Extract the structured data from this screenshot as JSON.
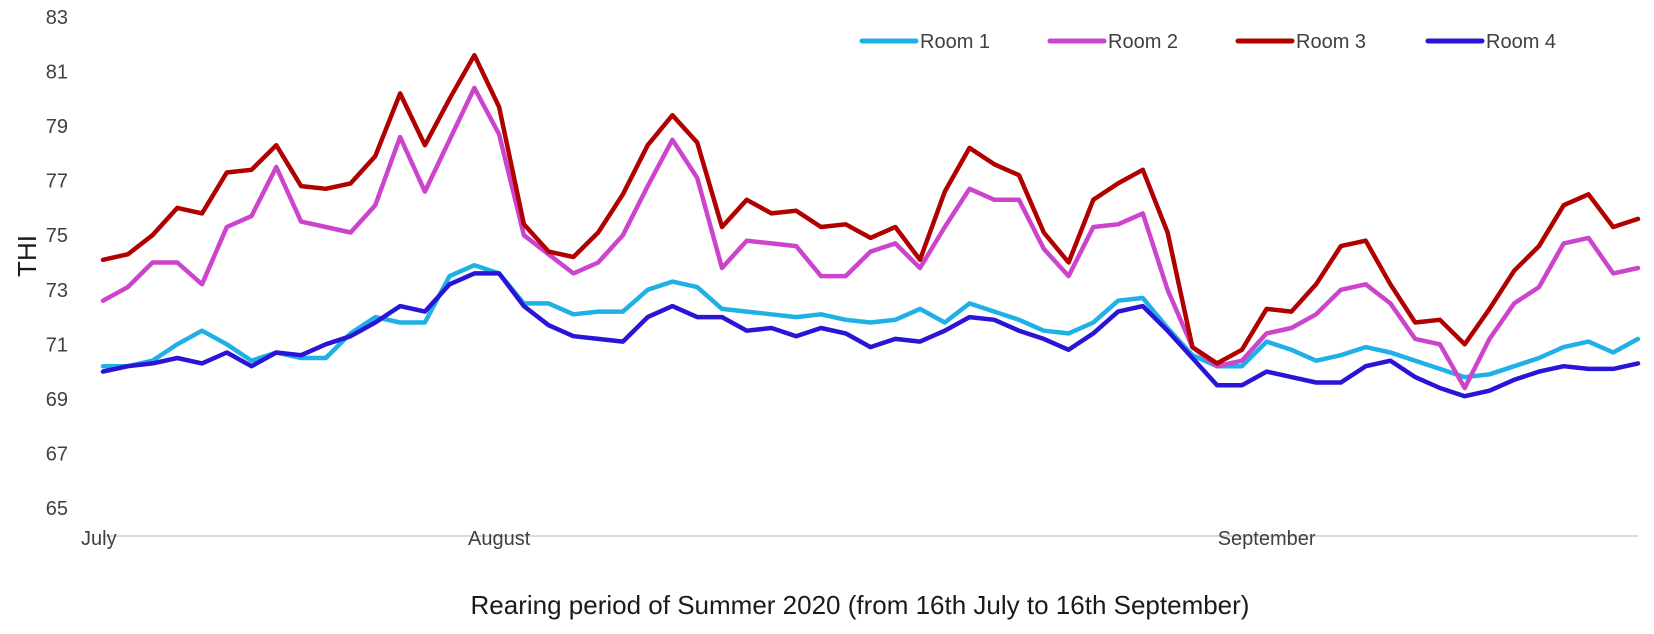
{
  "chart_data": {
    "type": "line",
    "xlabel": "Rearing period of Summer 2020 (from 16th July to 16th September)",
    "ylabel": "THI",
    "ylim": [
      65,
      83
    ],
    "yticks": [
      65,
      67,
      69,
      71,
      73,
      75,
      77,
      79,
      81,
      83
    ],
    "x_tick_labels": [
      {
        "label": "July",
        "day_index": 0
      },
      {
        "label": "August",
        "day_index": 16
      },
      {
        "label": "September",
        "day_index": 47
      }
    ],
    "grid": false,
    "legend_position": "top-right",
    "series": [
      {
        "name": "Room 1",
        "color": "#1fb0e6",
        "values": [
          70.2,
          70.2,
          70.4,
          71.0,
          71.5,
          71.0,
          70.4,
          70.7,
          70.5,
          70.5,
          71.4,
          72.0,
          71.8,
          71.8,
          73.5,
          73.9,
          73.6,
          72.5,
          72.5,
          72.1,
          72.2,
          72.2,
          73.0,
          73.3,
          73.1,
          72.3,
          72.2,
          72.1,
          72.0,
          72.1,
          71.9,
          71.8,
          71.9,
          72.3,
          71.8,
          72.5,
          72.2,
          71.9,
          71.5,
          71.4,
          71.8,
          72.6,
          72.7,
          71.6,
          70.6,
          70.2,
          70.2,
          71.1,
          70.8,
          70.4,
          70.6,
          70.9,
          70.7,
          70.4,
          70.1,
          69.8,
          69.9,
          70.2,
          70.5,
          70.9,
          71.1,
          70.7,
          71.2
        ]
      },
      {
        "name": "Room 2",
        "color": "#cc44cc",
        "values": [
          72.6,
          73.1,
          74.0,
          74.0,
          73.2,
          75.3,
          75.7,
          77.5,
          75.5,
          75.3,
          75.1,
          76.1,
          78.6,
          76.6,
          78.5,
          80.4,
          78.7,
          75.0,
          74.3,
          73.6,
          74.0,
          75.0,
          76.8,
          78.5,
          77.1,
          73.8,
          74.8,
          74.7,
          74.6,
          73.5,
          73.5,
          74.4,
          74.7,
          73.8,
          75.3,
          76.7,
          76.3,
          76.3,
          74.5,
          73.5,
          75.3,
          75.4,
          75.8,
          73.0,
          70.9,
          70.2,
          70.4,
          71.4,
          71.6,
          72.1,
          73.0,
          73.2,
          72.5,
          71.2,
          71.0,
          69.4,
          71.2,
          72.5,
          73.1,
          74.7,
          74.9,
          73.6,
          73.8
        ]
      },
      {
        "name": "Room 3",
        "color": "#b00000",
        "values": [
          74.1,
          74.3,
          75.0,
          76.0,
          75.8,
          77.3,
          77.4,
          78.3,
          76.8,
          76.7,
          76.9,
          77.9,
          80.2,
          78.3,
          80.0,
          81.6,
          79.7,
          75.4,
          74.4,
          74.2,
          75.1,
          76.5,
          78.3,
          79.4,
          78.4,
          75.3,
          76.3,
          75.8,
          75.9,
          75.3,
          75.4,
          74.9,
          75.3,
          74.1,
          76.6,
          78.2,
          77.6,
          77.2,
          75.1,
          74.0,
          76.3,
          76.9,
          77.4,
          75.1,
          70.9,
          70.3,
          70.8,
          72.3,
          72.2,
          73.2,
          74.6,
          74.8,
          73.2,
          71.8,
          71.9,
          71.0,
          72.3,
          73.7,
          74.6,
          76.1,
          76.5,
          75.3,
          75.6
        ]
      },
      {
        "name": "Room 4",
        "color": "#2a14d6",
        "values": [
          70.0,
          70.2,
          70.3,
          70.5,
          70.3,
          70.7,
          70.2,
          70.7,
          70.6,
          71.0,
          71.3,
          71.8,
          72.4,
          72.2,
          73.2,
          73.6,
          73.6,
          72.4,
          71.7,
          71.3,
          71.2,
          71.1,
          72.0,
          72.4,
          72.0,
          72.0,
          71.5,
          71.6,
          71.3,
          71.6,
          71.4,
          70.9,
          71.2,
          71.1,
          71.5,
          72.0,
          71.9,
          71.5,
          71.2,
          70.8,
          71.4,
          72.2,
          72.4,
          71.5,
          70.5,
          69.5,
          69.5,
          70.0,
          69.8,
          69.6,
          69.6,
          70.2,
          70.4,
          69.8,
          69.4,
          69.1,
          69.3,
          69.7,
          70.0,
          70.2,
          70.1,
          70.1,
          70.3
        ]
      }
    ]
  }
}
